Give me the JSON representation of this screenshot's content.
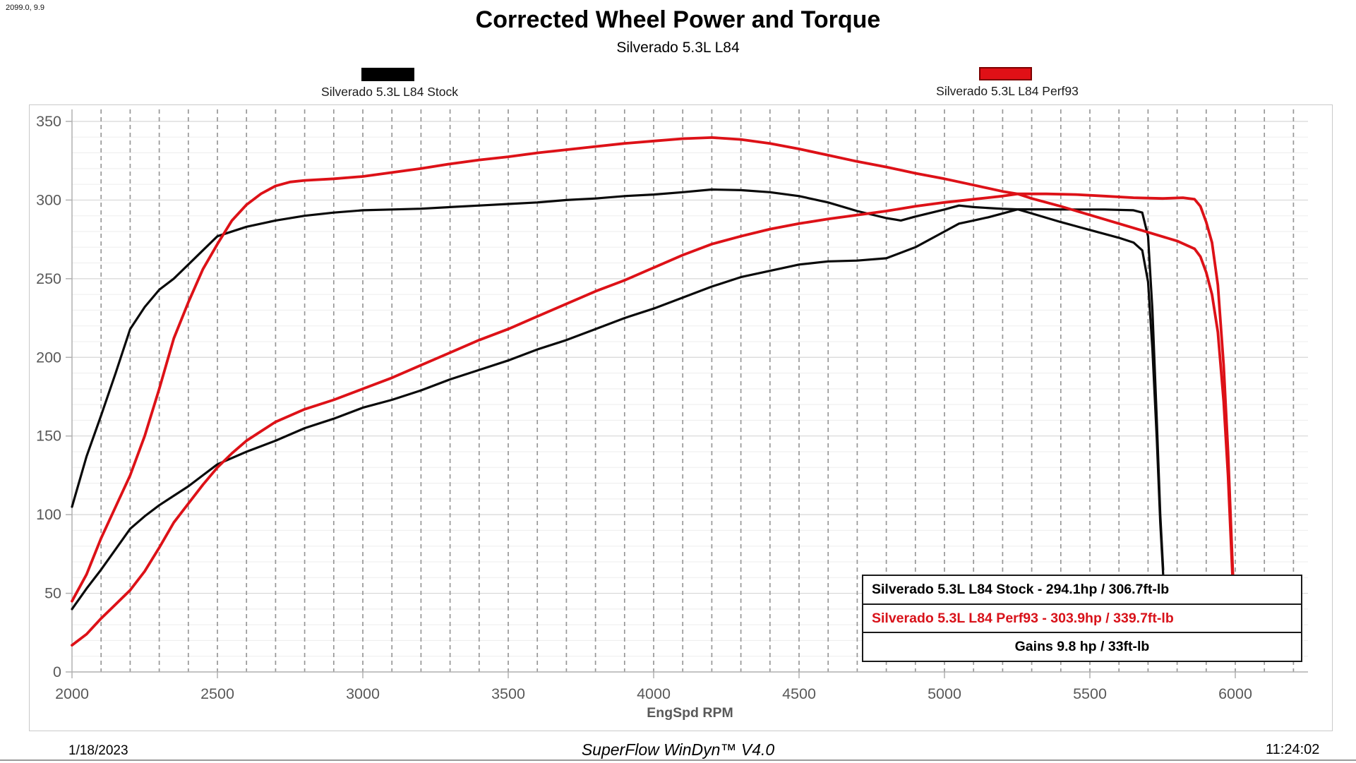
{
  "annotation_top_left": "2099.0, 9.9",
  "header": {
    "title": "Corrected Wheel Power and Torque",
    "subtitle": "Silverado 5.3L L84"
  },
  "legend": [
    {
      "label": "Silverado 5.3L L84 Stock",
      "color": "#000000"
    },
    {
      "label": "Silverado 5.3L L84 Perf93",
      "color": "#e01016"
    }
  ],
  "info_box": {
    "rows": [
      {
        "text": "Silverado 5.3L L84 Stock - 294.1hp / 306.7ft-lb",
        "color": "#000000",
        "align": "left"
      },
      {
        "text": "Silverado 5.3L L84 Perf93 - 303.9hp / 339.7ft-lb",
        "color": "#d8121a",
        "align": "left"
      },
      {
        "text": "Gains 9.8 hp / 33ft-lb",
        "color": "#000000",
        "align": "center"
      }
    ]
  },
  "footer": {
    "date": "1/18/2023",
    "software": "SuperFlow WinDyn™ V4.0",
    "time": "11:24:02"
  },
  "chart_data": {
    "type": "line",
    "title": "Corrected Wheel Power and Torque",
    "subtitle": "Silverado 5.3L L84",
    "xlabel": "EngSpd RPM",
    "ylabel": "",
    "xlim": [
      2000,
      6250
    ],
    "ylim": [
      0,
      357
    ],
    "x_ticks": [
      2000,
      2500,
      3000,
      3500,
      4000,
      4500,
      5000,
      5500,
      6000
    ],
    "y_ticks": [
      0,
      50,
      100,
      150,
      200,
      250,
      300,
      350
    ],
    "grid": {
      "vertical_dashed_every_rpm": 100,
      "horizontal_minor_every": 10,
      "horizontal_major_every": 50
    },
    "legend_position": "top",
    "peaks": {
      "stock": {
        "power_hp": 294.1,
        "torque_ftlb": 306.7
      },
      "perf93": {
        "power_hp": 303.9,
        "torque_ftlb": 339.7
      },
      "gains": {
        "power_hp": 9.8,
        "torque_ftlb": 33
      }
    },
    "series": [
      {
        "name": "Silverado 5.3L L84 Stock - Torque (ft-lb)",
        "color": "#0a0a0a",
        "width": 3.2,
        "points": [
          [
            2000,
            105
          ],
          [
            2050,
            137
          ],
          [
            2100,
            163
          ],
          [
            2150,
            190
          ],
          [
            2200,
            218
          ],
          [
            2250,
            232
          ],
          [
            2300,
            243
          ],
          [
            2350,
            250
          ],
          [
            2400,
            259
          ],
          [
            2450,
            268
          ],
          [
            2500,
            277
          ],
          [
            2600,
            283
          ],
          [
            2700,
            287
          ],
          [
            2800,
            290
          ],
          [
            2900,
            292
          ],
          [
            3000,
            293.5
          ],
          [
            3100,
            294
          ],
          [
            3200,
            294.5
          ],
          [
            3300,
            295.5
          ],
          [
            3400,
            296.5
          ],
          [
            3500,
            297.5
          ],
          [
            3600,
            298.5
          ],
          [
            3700,
            300
          ],
          [
            3800,
            301
          ],
          [
            3900,
            302.5
          ],
          [
            4000,
            303.5
          ],
          [
            4100,
            305
          ],
          [
            4200,
            306.7
          ],
          [
            4300,
            306.3
          ],
          [
            4400,
            305
          ],
          [
            4500,
            302.5
          ],
          [
            4600,
            298.5
          ],
          [
            4700,
            293
          ],
          [
            4800,
            288.5
          ],
          [
            4850,
            287
          ],
          [
            4900,
            289.5
          ],
          [
            5000,
            294
          ],
          [
            5050,
            296.5
          ],
          [
            5100,
            295.5
          ],
          [
            5200,
            294.4
          ],
          [
            5252,
            294.1
          ],
          [
            5300,
            291.5
          ],
          [
            5400,
            286
          ],
          [
            5500,
            281
          ],
          [
            5600,
            276
          ],
          [
            5650,
            273
          ],
          [
            5680,
            268
          ],
          [
            5700,
            248
          ],
          [
            5715,
            205
          ],
          [
            5730,
            148
          ],
          [
            5742,
            95
          ],
          [
            5752,
            62
          ]
        ]
      },
      {
        "name": "Silverado 5.3L L84 Stock - Power (hp)",
        "color": "#0a0a0a",
        "width": 3.2,
        "points": [
          [
            2000,
            40
          ],
          [
            2050,
            53
          ],
          [
            2100,
            65
          ],
          [
            2150,
            78
          ],
          [
            2200,
            91
          ],
          [
            2250,
            99
          ],
          [
            2300,
            106
          ],
          [
            2350,
            112
          ],
          [
            2400,
            118
          ],
          [
            2450,
            125
          ],
          [
            2500,
            132
          ],
          [
            2600,
            140
          ],
          [
            2700,
            147
          ],
          [
            2800,
            155
          ],
          [
            2900,
            161
          ],
          [
            3000,
            168
          ],
          [
            3100,
            173
          ],
          [
            3200,
            179
          ],
          [
            3300,
            186
          ],
          [
            3400,
            192
          ],
          [
            3500,
            198
          ],
          [
            3600,
            205
          ],
          [
            3700,
            211
          ],
          [
            3800,
            218
          ],
          [
            3900,
            225
          ],
          [
            4000,
            231
          ],
          [
            4100,
            238
          ],
          [
            4200,
            245
          ],
          [
            4300,
            251
          ],
          [
            4400,
            255
          ],
          [
            4500,
            259
          ],
          [
            4600,
            261
          ],
          [
            4700,
            261.5
          ],
          [
            4800,
            263
          ],
          [
            4900,
            270
          ],
          [
            5000,
            280
          ],
          [
            5050,
            285
          ],
          [
            5100,
            287
          ],
          [
            5150,
            289
          ],
          [
            5200,
            291.5
          ],
          [
            5252,
            294.1
          ],
          [
            5350,
            294.1
          ],
          [
            5450,
            294
          ],
          [
            5550,
            294
          ],
          [
            5650,
            293.5
          ],
          [
            5680,
            292
          ],
          [
            5700,
            277
          ],
          [
            5715,
            230
          ],
          [
            5730,
            160
          ],
          [
            5742,
            100
          ],
          [
            5752,
            65
          ]
        ]
      },
      {
        "name": "Silverado 5.3L L84 Perf93 - Torque (ft-lb)",
        "color": "#dd1117",
        "width": 3.8,
        "points": [
          [
            2000,
            45
          ],
          [
            2050,
            62
          ],
          [
            2100,
            85
          ],
          [
            2150,
            105
          ],
          [
            2200,
            125
          ],
          [
            2250,
            150
          ],
          [
            2300,
            180
          ],
          [
            2350,
            212
          ],
          [
            2400,
            235
          ],
          [
            2450,
            256
          ],
          [
            2500,
            272
          ],
          [
            2550,
            287
          ],
          [
            2600,
            297
          ],
          [
            2650,
            304
          ],
          [
            2700,
            309
          ],
          [
            2750,
            311.5
          ],
          [
            2800,
            312.5
          ],
          [
            2900,
            313.5
          ],
          [
            3000,
            315
          ],
          [
            3100,
            317.5
          ],
          [
            3200,
            320
          ],
          [
            3300,
            323
          ],
          [
            3400,
            325.5
          ],
          [
            3500,
            327.5
          ],
          [
            3600,
            330
          ],
          [
            3700,
            332
          ],
          [
            3800,
            334
          ],
          [
            3900,
            336
          ],
          [
            4000,
            337.5
          ],
          [
            4100,
            339
          ],
          [
            4200,
            339.7
          ],
          [
            4300,
            338.5
          ],
          [
            4400,
            336
          ],
          [
            4500,
            332.5
          ],
          [
            4600,
            328.5
          ],
          [
            4700,
            324.5
          ],
          [
            4800,
            321
          ],
          [
            4900,
            317
          ],
          [
            5000,
            313.5
          ],
          [
            5100,
            309.5
          ],
          [
            5200,
            305.5
          ],
          [
            5252,
            303.9
          ],
          [
            5300,
            301
          ],
          [
            5400,
            296
          ],
          [
            5500,
            290.5
          ],
          [
            5600,
            285
          ],
          [
            5700,
            279.5
          ],
          [
            5800,
            274
          ],
          [
            5860,
            269
          ],
          [
            5880,
            264
          ],
          [
            5900,
            254
          ],
          [
            5920,
            240
          ],
          [
            5940,
            216
          ],
          [
            5960,
            172
          ],
          [
            5975,
            125
          ],
          [
            5990,
            62
          ],
          [
            6000,
            22
          ]
        ]
      },
      {
        "name": "Silverado 5.3L L84 Perf93 - Power (hp)",
        "color": "#dd1117",
        "width": 3.8,
        "points": [
          [
            2000,
            17
          ],
          [
            2050,
            24
          ],
          [
            2100,
            34
          ],
          [
            2150,
            43
          ],
          [
            2200,
            52
          ],
          [
            2250,
            64
          ],
          [
            2300,
            79
          ],
          [
            2350,
            95
          ],
          [
            2400,
            107
          ],
          [
            2450,
            119
          ],
          [
            2500,
            130
          ],
          [
            2550,
            139
          ],
          [
            2600,
            147
          ],
          [
            2650,
            153
          ],
          [
            2700,
            159
          ],
          [
            2750,
            163
          ],
          [
            2800,
            167
          ],
          [
            2900,
            173
          ],
          [
            3000,
            180
          ],
          [
            3100,
            187
          ],
          [
            3200,
            195
          ],
          [
            3300,
            203
          ],
          [
            3400,
            211
          ],
          [
            3500,
            218
          ],
          [
            3600,
            226
          ],
          [
            3700,
            234
          ],
          [
            3800,
            242
          ],
          [
            3900,
            249
          ],
          [
            4000,
            257
          ],
          [
            4100,
            265
          ],
          [
            4200,
            272
          ],
          [
            4300,
            277
          ],
          [
            4400,
            281.5
          ],
          [
            4500,
            285
          ],
          [
            4600,
            288
          ],
          [
            4700,
            290.5
          ],
          [
            4800,
            293
          ],
          [
            4900,
            296
          ],
          [
            5000,
            298.5
          ],
          [
            5100,
            300.5
          ],
          [
            5200,
            302.5
          ],
          [
            5252,
            303.9
          ],
          [
            5350,
            303.9
          ],
          [
            5450,
            303.5
          ],
          [
            5550,
            302.5
          ],
          [
            5650,
            301.5
          ],
          [
            5750,
            301
          ],
          [
            5820,
            301.5
          ],
          [
            5860,
            300.5
          ],
          [
            5880,
            296
          ],
          [
            5900,
            286
          ],
          [
            5920,
            273
          ],
          [
            5940,
            246
          ],
          [
            5960,
            195
          ],
          [
            5975,
            140
          ],
          [
            5990,
            70
          ],
          [
            6000,
            25
          ]
        ]
      }
    ]
  }
}
